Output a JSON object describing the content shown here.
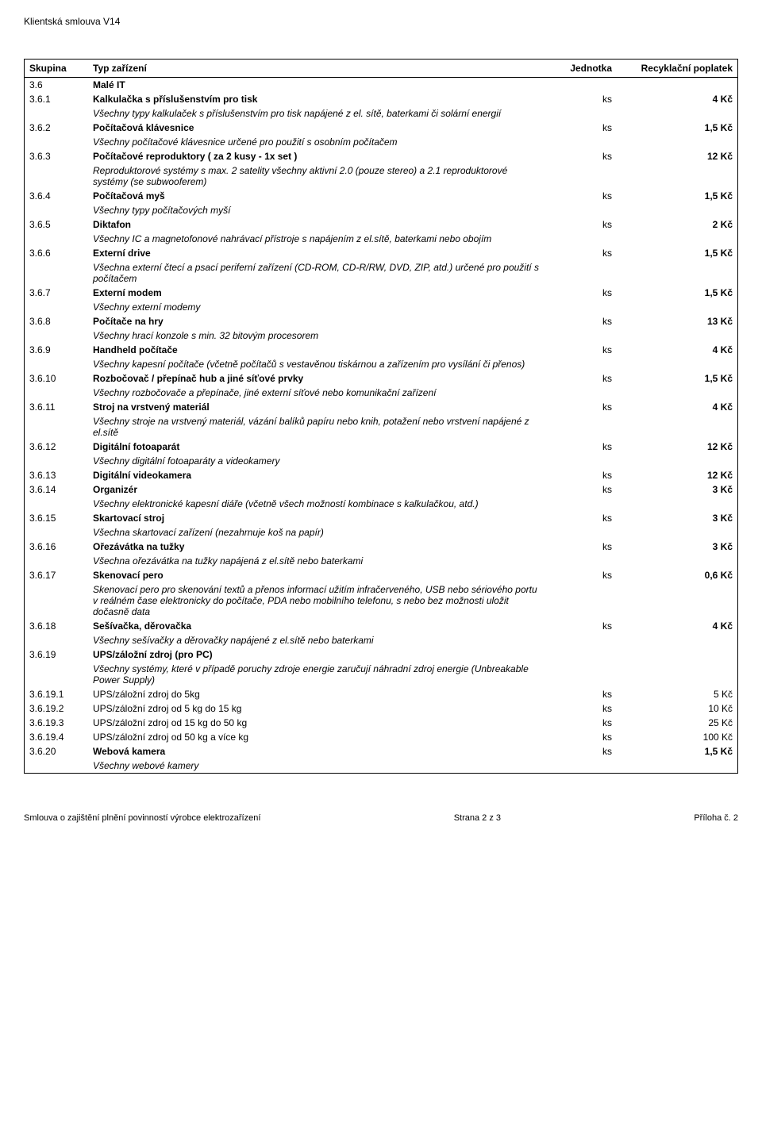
{
  "header_title": "Klientská smlouva V14",
  "columns": {
    "group": "Skupina",
    "type": "Typ zařízení",
    "unit": "Jednotka",
    "fee": "Recyklační poplatek"
  },
  "section": {
    "code": "3.6",
    "name": "Malé IT"
  },
  "rows": [
    {
      "code": "3.6.1",
      "name": "Kalkulačka s příslušenstvím pro tisk",
      "desc": "Všechny typy kalkulaček s příslušenstvím pro tisk napájené z el. sítě, baterkami či solární energií",
      "unit": "ks",
      "fee": "4 Kč"
    },
    {
      "code": "3.6.2",
      "name": "Počítačová klávesnice",
      "desc": "Všechny počítačové klávesnice určené pro použití s osobním počítačem",
      "unit": "ks",
      "fee": "1,5 Kč"
    },
    {
      "code": "3.6.3",
      "name": "Počítačové reproduktory ( za 2 kusy - 1x set )",
      "desc": "Reproduktorové systémy s max. 2 satelity  všechny aktivní 2.0 (pouze stereo) a 2.1 reproduktorové systémy (se subwooferem)",
      "unit": "ks",
      "fee": "12 Kč"
    },
    {
      "code": "3.6.4",
      "name": "Počítačová myš",
      "desc": "Všechny typy počítačových myší",
      "unit": "ks",
      "fee": "1,5 Kč"
    },
    {
      "code": "3.6.5",
      "name": "Diktafon",
      "desc": "Všechny IC a magnetofonové nahrávací přístroje s napájením z el.sítě, baterkami nebo obojím",
      "unit": "ks",
      "fee": "2 Kč"
    },
    {
      "code": "3.6.6",
      "name": "Externí drive",
      "desc": "Všechna externí čtecí a psací periferní zařízení (CD-ROM, CD-R/RW, DVD, ZIP, atd.) určené pro použití s počítačem",
      "unit": "ks",
      "fee": "1,5 Kč"
    },
    {
      "code": "3.6.7",
      "name": "Externí modem",
      "desc": "Všechny externí modemy",
      "unit": "ks",
      "fee": "1,5 Kč"
    },
    {
      "code": "3.6.8",
      "name": "Počítače na hry",
      "desc": "Všechny hrací konzole s min. 32 bitovým procesorem",
      "unit": "ks",
      "fee": "13 Kč"
    },
    {
      "code": "3.6.9",
      "name": "Handheld počítače",
      "desc": "Všechny kapesní počítače (včetně počítačů s vestavěnou tiskárnou a zařízením pro vysílání či přenos)",
      "unit": "ks",
      "fee": "4 Kč"
    },
    {
      "code": "3.6.10",
      "name": "Rozbočovač / přepínač hub a jiné síťové prvky",
      "desc": "Všechny rozbočovače a přepínače, jiné externí síťové nebo komunikační zařízení",
      "unit": "ks",
      "fee": "1,5 Kč"
    },
    {
      "code": "3.6.11",
      "name": "Stroj na vrstvený materiál",
      "desc": "Všechny stroje na vrstvený materiál, vázání balíků papíru nebo knih, potažení nebo vrstvení napájené z el.sítě",
      "unit": "ks",
      "fee": "4 Kč"
    },
    {
      "code": "3.6.12",
      "name": "Digitální fotoaparát",
      "desc": "Všechny digitální fotoaparáty a videokamery",
      "unit": "ks",
      "fee": "12 Kč"
    },
    {
      "code": "3.6.13",
      "name": "Digitální videokamera",
      "unit": "ks",
      "fee": "12 Kč"
    },
    {
      "code": "3.6.14",
      "name": "Organizér",
      "desc": "Všechny elektronické kapesní diáře (včetně všech možností kombinace s kalkulačkou, atd.)",
      "unit": "ks",
      "fee": "3 Kč"
    },
    {
      "code": "3.6.15",
      "name": "Skartovací stroj",
      "desc": "Všechna skartovací zařízení (nezahrnuje koš na papír)",
      "unit": "ks",
      "fee": "3 Kč"
    },
    {
      "code": "3.6.16",
      "name": "Ořezávátka na tužky",
      "desc": "Všechna ořezávátka na tužky napájená z el.sítě nebo baterkami",
      "unit": "ks",
      "fee": "3 Kč"
    },
    {
      "code": "3.6.17",
      "name": "Skenovací pero",
      "desc": "Skenovací pero pro skenování textů a přenos informací užitím infračerveného, USB nebo sériového portu v reálném čase elektronicky do počítače, PDA nebo mobilního telefonu, s nebo bez možnosti uložit dočasně data",
      "unit": "ks",
      "fee": "0,6 Kč"
    },
    {
      "code": "3.6.18",
      "name": "Sešívačka, děrovačka",
      "desc": "Všechny sešívačky a děrovačky napájené z el.sítě nebo baterkami",
      "unit": "ks",
      "fee": "4 Kč"
    },
    {
      "code": "3.6.19",
      "name": "UPS/záložní zdroj (pro PC)",
      "desc": "Všechny systémy, které v případě poruchy zdroje energie zaručují náhradní zdroj energie (Unbreakable Power Supply)",
      "unit": "",
      "fee": ""
    },
    {
      "code": "3.6.19.1",
      "name": "UPS/záložní zdroj do 5kg",
      "plain": true,
      "unit": "ks",
      "fee": "5 Kč"
    },
    {
      "code": "3.6.19.2",
      "name": "UPS/záložní zdroj od 5 kg do 15 kg",
      "plain": true,
      "unit": "ks",
      "fee": "10 Kč"
    },
    {
      "code": "3.6.19.3",
      "name": "UPS/záložní zdroj od 15 kg do 50 kg",
      "plain": true,
      "unit": "ks",
      "fee": "25 Kč"
    },
    {
      "code": "3.6.19.4",
      "name": "UPS/záložní zdroj od 50 kg a více kg",
      "plain": true,
      "unit": "ks",
      "fee": "100 Kč"
    },
    {
      "code": "3.6.20",
      "name": "Webová kamera",
      "desc": "Všechny webové kamery",
      "unit": "ks",
      "fee": "1,5 Kč"
    }
  ],
  "footer": {
    "left": "Smlouva o zajištění plnění povinností výrobce elektrozařízení",
    "center": "Strana 2 z 3",
    "right": "Příloha č. 2"
  }
}
